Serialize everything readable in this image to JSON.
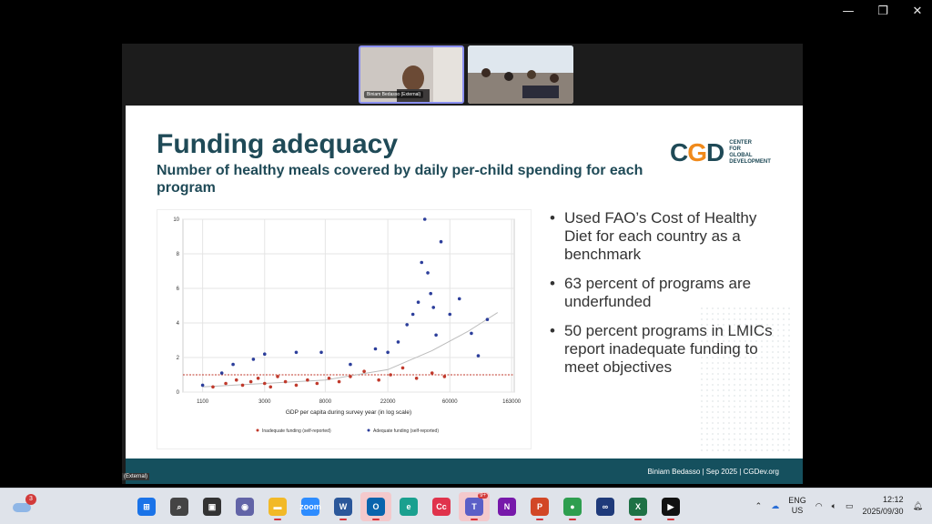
{
  "window": {
    "controls": [
      "minimize-icon",
      "restore-icon",
      "close-icon"
    ]
  },
  "meeting": {
    "participant_name": "Biniam Bedasso (External)",
    "external_label": "(External)"
  },
  "slide": {
    "title": "Funding adequacy",
    "subtitle": "Number of healthy meals covered by daily per-child spending for each program",
    "logo_mark": "CGD",
    "logo_text": [
      "CENTER",
      "FOR",
      "GLOBAL",
      "DEVELOPMENT"
    ],
    "bullets": [
      "Used FAO’s Cost of Healthy Diet for each country as a benchmark",
      "63 percent of programs are underfunded",
      "50 percent programs in LMICs report inadequate funding to meet objectives"
    ],
    "footer": "Biniam Bedasso | Sep 2025 | CGDev.org"
  },
  "chart_data": {
    "type": "scatter",
    "xlabel": "GDP per capita during survey year (in log scale)",
    "ylabel": "",
    "x_scale": "log",
    "x_ticks": [
      "1100",
      "3000",
      "8000",
      "22000",
      "60000",
      "163000"
    ],
    "y_ticks": [
      "0",
      "2",
      "4",
      "6",
      "8",
      "10"
    ],
    "xlim": [
      800,
      170000
    ],
    "ylim": [
      0,
      10
    ],
    "reference_line_y": 1,
    "legend": [
      "Inadequate funding (self-reported)",
      "Adequate funding (self-reported)"
    ],
    "legend_position": "bottom",
    "series": [
      {
        "name": "Inadequate funding (self-reported)",
        "color": "#c0392b",
        "points": [
          [
            1300,
            0.3
          ],
          [
            1600,
            0.5
          ],
          [
            1900,
            0.7
          ],
          [
            2100,
            0.4
          ],
          [
            2400,
            0.6
          ],
          [
            2700,
            0.8
          ],
          [
            3000,
            0.5
          ],
          [
            3300,
            0.3
          ],
          [
            3700,
            0.9
          ],
          [
            4200,
            0.6
          ],
          [
            5000,
            0.4
          ],
          [
            6000,
            0.7
          ],
          [
            7000,
            0.5
          ],
          [
            8500,
            0.8
          ],
          [
            10000,
            0.6
          ],
          [
            12000,
            0.9
          ],
          [
            15000,
            1.2
          ],
          [
            19000,
            0.7
          ],
          [
            23000,
            1.0
          ],
          [
            28000,
            1.4
          ],
          [
            35000,
            0.8
          ],
          [
            45000,
            1.1
          ],
          [
            55000,
            0.9
          ]
        ]
      },
      {
        "name": "Adequate funding (self-reported)",
        "color": "#2c3e9b",
        "points": [
          [
            1100,
            0.4
          ],
          [
            1500,
            1.1
          ],
          [
            1800,
            1.6
          ],
          [
            2500,
            1.9
          ],
          [
            3000,
            2.2
          ],
          [
            5000,
            2.3
          ],
          [
            7500,
            2.3
          ],
          [
            12000,
            1.6
          ],
          [
            18000,
            2.5
          ],
          [
            22000,
            2.3
          ],
          [
            26000,
            2.9
          ],
          [
            30000,
            3.9
          ],
          [
            33000,
            4.5
          ],
          [
            36000,
            5.2
          ],
          [
            38000,
            7.5
          ],
          [
            40000,
            10.0
          ],
          [
            42000,
            6.9
          ],
          [
            44000,
            5.7
          ],
          [
            46000,
            4.9
          ],
          [
            48000,
            3.3
          ],
          [
            52000,
            8.7
          ],
          [
            60000,
            4.5
          ],
          [
            70000,
            5.4
          ],
          [
            85000,
            3.4
          ],
          [
            95000,
            2.1
          ],
          [
            110000,
            4.2
          ]
        ]
      }
    ]
  },
  "taskbar": {
    "weather_badge": "3",
    "apps": [
      {
        "name": "start",
        "label": "⊞",
        "color": "#1a73e8"
      },
      {
        "name": "search",
        "label": "⌕",
        "color": "#444"
      },
      {
        "name": "task-view",
        "label": "▣",
        "color": "#333"
      },
      {
        "name": "chat",
        "label": "◉",
        "color": "#6264a7"
      },
      {
        "name": "file-explorer",
        "label": "▬",
        "color": "#f2b928"
      },
      {
        "name": "zoom",
        "label": "zoom",
        "color": "#2d8cff"
      },
      {
        "name": "word",
        "label": "W",
        "color": "#2b579a"
      },
      {
        "name": "outlook",
        "label": "O",
        "color": "#0a64ad"
      },
      {
        "name": "edge",
        "label": "e",
        "color": "#1aa08f"
      },
      {
        "name": "creative-cloud",
        "label": "Cc",
        "color": "#e0334c"
      },
      {
        "name": "teams",
        "label": "T",
        "color": "#5b5fc7"
      },
      {
        "name": "onenote",
        "label": "N",
        "color": "#7719aa"
      },
      {
        "name": "powerpoint",
        "label": "P",
        "color": "#d24726"
      },
      {
        "name": "chrome",
        "label": "●",
        "color": "#2e9e4f"
      },
      {
        "name": "copilot",
        "label": "∞",
        "color": "#1f3a7a"
      },
      {
        "name": "excel",
        "label": "X",
        "color": "#1e7145"
      },
      {
        "name": "media-player",
        "label": "▶",
        "color": "#111"
      }
    ],
    "teams_badge": "9+",
    "language_primary": "ENG",
    "language_secondary": "US",
    "time": "12:12",
    "date": "2025/09/30"
  }
}
